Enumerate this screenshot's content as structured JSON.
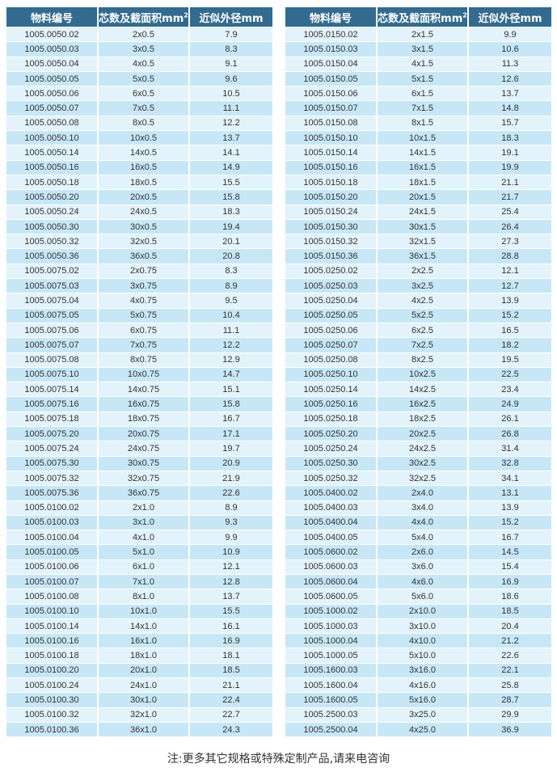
{
  "headers": {
    "code": "物料编号",
    "spec": "芯数及截面积mm",
    "spec_sup": "2",
    "dia": "近似外径mm"
  },
  "left_rows": [
    [
      "1005.0050.02",
      "2x0.5",
      "7.9"
    ],
    [
      "1005.0050.03",
      "3x0.5",
      "8.3"
    ],
    [
      "1005.0050.04",
      "4x0.5",
      "9.1"
    ],
    [
      "1005.0050.05",
      "5x0.5",
      "9.6"
    ],
    [
      "1005.0050.06",
      "6x0.5",
      "10.5"
    ],
    [
      "1005.0050.07",
      "7x0.5",
      "11.1"
    ],
    [
      "1005.0050.08",
      "8x0.5",
      "12.2"
    ],
    [
      "1005.0050.10",
      "10x0.5",
      "13.7"
    ],
    [
      "1005.0050.14",
      "14x0.5",
      "14.1"
    ],
    [
      "1005.0050.16",
      "16x0.5",
      "14.9"
    ],
    [
      "1005.0050.18",
      "18x0.5",
      "15.5"
    ],
    [
      "1005.0050.20",
      "20x0.5",
      "15.8"
    ],
    [
      "1005.0050.24",
      "24x0.5",
      "18.3"
    ],
    [
      "1005.0050.30",
      "30x0.5",
      "19.4"
    ],
    [
      "1005.0050.32",
      "32x0.5",
      "20.1"
    ],
    [
      "1005.0050.36",
      "36x0.5",
      "20.8"
    ],
    [
      "1005.0075.02",
      "2x0.75",
      "8.3"
    ],
    [
      "1005.0075.03",
      "3x0.75",
      "8.9"
    ],
    [
      "1005.0075.04",
      "4x0.75",
      "9.5"
    ],
    [
      "1005.0075.05",
      "5x0.75",
      "10.4"
    ],
    [
      "1005.0075.06",
      "6x0.75",
      "11.1"
    ],
    [
      "1005.0075.07",
      "7x0.75",
      "12.2"
    ],
    [
      "1005.0075.08",
      "8x0.75",
      "12.9"
    ],
    [
      "1005.0075.10",
      "10x0.75",
      "14.7"
    ],
    [
      "1005.0075.14",
      "14x0.75",
      "15.1"
    ],
    [
      "1005.0075.16",
      "16x0.75",
      "15.8"
    ],
    [
      "1005.0075.18",
      "18x0.75",
      "16.7"
    ],
    [
      "1005.0075.20",
      "20x0.75",
      "17.1"
    ],
    [
      "1005.0075.24",
      "24x0.75",
      "19.7"
    ],
    [
      "1005.0075.30",
      "30x0.75",
      "20.9"
    ],
    [
      "1005.0075.32",
      "32x0.75",
      "21.9"
    ],
    [
      "1005.0075.36",
      "36x0.75",
      "22.6"
    ],
    [
      "1005.0100.02",
      "2x1.0",
      "8.9"
    ],
    [
      "1005.0100.03",
      "3x1.0",
      "9.3"
    ],
    [
      "1005.0100.04",
      "4x1.0",
      "9.9"
    ],
    [
      "1005.0100.05",
      "5x1.0",
      "10.9"
    ],
    [
      "1005.0100.06",
      "6x1.0",
      "12.1"
    ],
    [
      "1005.0100.07",
      "7x1.0",
      "12.8"
    ],
    [
      "1005.0100.08",
      "8x1.0",
      "13.7"
    ],
    [
      "1005.0100.10",
      "10x1.0",
      "15.5"
    ],
    [
      "1005.0100.14",
      "14x1.0",
      "16.1"
    ],
    [
      "1005.0100.16",
      "16x1.0",
      "16.9"
    ],
    [
      "1005.0100.18",
      "18x1.0",
      "18.1"
    ],
    [
      "1005.0100.20",
      "20x1.0",
      "18.5"
    ],
    [
      "1005.0100.24",
      "24x1.0",
      "21.1"
    ],
    [
      "1005.0100.30",
      "30x1.0",
      "22.4"
    ],
    [
      "1005.0100.32",
      "32x1.0",
      "22.7"
    ],
    [
      "1005.0100.36",
      "36x1.0",
      "24.3"
    ]
  ],
  "right_rows": [
    [
      "1005.0150.02",
      "2x1.5",
      "9.9"
    ],
    [
      "1005.0150.03",
      "3x1.5",
      "10.6"
    ],
    [
      "1005.0150.04",
      "4x1.5",
      "11.3"
    ],
    [
      "1005.0150.05",
      "5x1.5",
      "12.6"
    ],
    [
      "1005.0150.06",
      "6x1.5",
      "13.7"
    ],
    [
      "1005.0150.07",
      "7x1.5",
      "14.8"
    ],
    [
      "1005.0150.08",
      "8x1.5",
      "15.7"
    ],
    [
      "1005.0150.10",
      "10x1.5",
      "18.3"
    ],
    [
      "1005.0150.14",
      "14x1.5",
      "19.1"
    ],
    [
      "1005.0150.16",
      "16x1.5",
      "19.9"
    ],
    [
      "1005.0150.18",
      "18x1.5",
      "21.1"
    ],
    [
      "1005.0150.20",
      "20x1.5",
      "21.7"
    ],
    [
      "1005.0150.24",
      "24x1.5",
      "25.4"
    ],
    [
      "1005.0150.30",
      "30x1.5",
      "26.4"
    ],
    [
      "1005.0150.32",
      "32x1.5",
      "27.3"
    ],
    [
      "1005.0150.36",
      "36x1.5",
      "28.8"
    ],
    [
      "1005.0250.02",
      "2x2.5",
      "12.1"
    ],
    [
      "1005.0250.03",
      "3x2.5",
      "12.7"
    ],
    [
      "1005.0250.04",
      "4x2.5",
      "13.9"
    ],
    [
      "1005.0250.05",
      "5x2.5",
      "15.2"
    ],
    [
      "1005.0250.06",
      "6x2.5",
      "16.5"
    ],
    [
      "1005.0250.07",
      "7x2.5",
      "18.2"
    ],
    [
      "1005.0250.08",
      "8x2.5",
      "19.5"
    ],
    [
      "1005.0250.10",
      "10x2.5",
      "22.5"
    ],
    [
      "1005.0250.14",
      "14x2.5",
      "23.4"
    ],
    [
      "1005.0250.16",
      "16x2.5",
      "24.9"
    ],
    [
      "1005.0250.18",
      "18x2.5",
      "26.1"
    ],
    [
      "1005.0250.20",
      "20x2.5",
      "26.8"
    ],
    [
      "1005.0250.24",
      "24x2.5",
      "31.4"
    ],
    [
      "1005.0250.30",
      "30x2.5",
      "32.8"
    ],
    [
      "1005.0250.32",
      "32x2.5",
      "34.1"
    ],
    [
      "1005.0400.02",
      "2x4.0",
      "13.1"
    ],
    [
      "1005.0400.03",
      "3x4.0",
      "13.9"
    ],
    [
      "1005.0400.04",
      "4x4.0",
      "15.2"
    ],
    [
      "1005.0400.05",
      "5x4.0",
      "16.7"
    ],
    [
      "1005.0600.02",
      "2x6.0",
      "14.5"
    ],
    [
      "1005.0600.03",
      "3x6.0",
      "15.4"
    ],
    [
      "1005.0600.04",
      "4x6.0",
      "16.9"
    ],
    [
      "1005.0600.05",
      "5x6.0",
      "18.6"
    ],
    [
      "1005.1000.02",
      "2x10.0",
      "18.5"
    ],
    [
      "1005.1000.03",
      "3x10.0",
      "20.4"
    ],
    [
      "1005.1000.04",
      "4x10.0",
      "21.2"
    ],
    [
      "1005.1000.05",
      "5x10.0",
      "22.6"
    ],
    [
      "1005.1600.03",
      "3x16.0",
      "22.1"
    ],
    [
      "1005.1600.04",
      "4x16.0",
      "25.8"
    ],
    [
      "1005.1600.05",
      "5x16.0",
      "28.7"
    ],
    [
      "1005.2500.03",
      "3x25.0",
      "29.9"
    ],
    [
      "1005.2500.04",
      "4x25.0",
      "36.9"
    ]
  ],
  "note": "注:更多其它规格或特殊定制产品,请来电咨询",
  "colors": {
    "header": "#336a8f",
    "row_light": "#e2f3fb",
    "row_dark": "#c7e7f7"
  }
}
